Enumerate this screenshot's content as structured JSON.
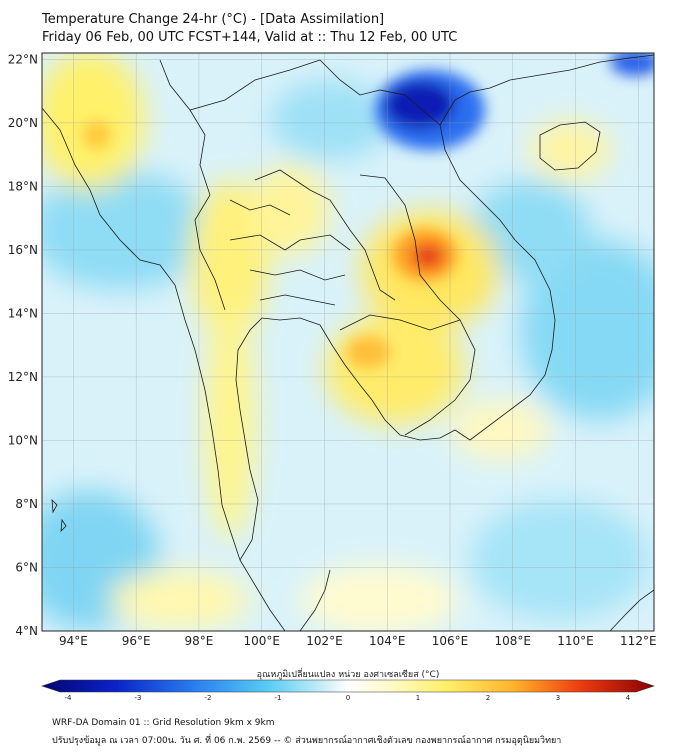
{
  "header": {
    "title_line1": "Temperature Change 24-hr (°C) - [Data Assimilation]",
    "title_line2": "Friday 06 Feb, 00 UTC FCST+144, Valid at :: Thu 12 Feb, 00 UTC"
  },
  "map": {
    "lat_labels": [
      "22°N",
      "20°N",
      "18°N",
      "16°N",
      "14°N",
      "12°N",
      "10°N",
      "8°N",
      "6°N",
      "4°N"
    ],
    "lon_labels": [
      "94°E",
      "96°E",
      "98°E",
      "100°E",
      "102°E",
      "104°E",
      "106°E",
      "108°E",
      "110°E",
      "112°E"
    ],
    "lat_range": [
      4,
      22.2
    ],
    "lon_range": [
      93,
      112.5
    ]
  },
  "colorbar": {
    "label": "อุณหภูมิเปลี่ยนแปลง หน่วย องศาเซลเซียส (°C)",
    "ticks": [
      "-4",
      "-3",
      "-2",
      "-1",
      "0",
      "1",
      "2",
      "3",
      "4"
    ],
    "range": [
      -4,
      4
    ]
  },
  "colors": {
    "cold_extreme": "#0a0a8c",
    "cold": "#1e6fe6",
    "cool": "#7fd6f5",
    "neutral": "#ffffff",
    "warm": "#fff27a",
    "hot": "#ff8c1a",
    "hot_extreme": "#c01010"
  },
  "footer": {
    "line1": "WRF-DA Domain 01 :: Grid Resolution 9km x 9km",
    "line2": "ปรับปรุงข้อมูล ณ เวลา 07:00น. วัน ศ. ที่ 06 ก.พ. 2569 -- © ส่วนพยากรณ์อากาศเชิงตัวเลข กองพยากรณ์อากาศ กรมอุตุนิยมวิทยา"
  }
}
